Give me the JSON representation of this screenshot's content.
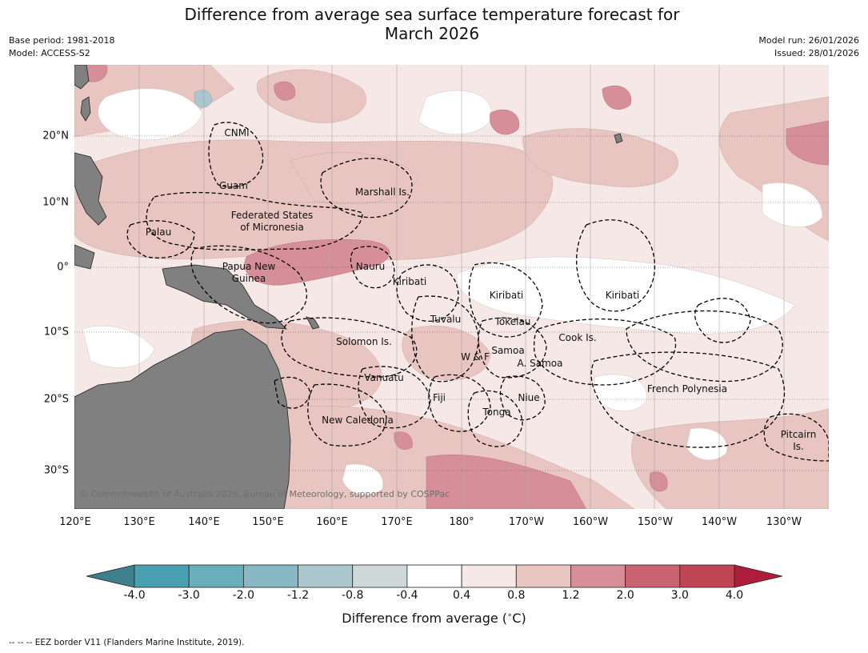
{
  "header": {
    "title_line1": "Difference from average sea surface temperature forecast for",
    "title_line2": "March 2026",
    "base_period": "Base period: 1981-2018",
    "model": "Model: ACCESS-S2",
    "model_run": "Model run: 26/01/2026",
    "issued": "Issued: 28/01/2026"
  },
  "map": {
    "copyright": "© Commonwealth of Australia 2026, Bureau of Meteorology, supported by COSPPac",
    "lon_labels": [
      "120°E",
      "130°E",
      "140°E",
      "150°E",
      "160°E",
      "170°E",
      "180°",
      "170°W",
      "160°W",
      "150°W",
      "140°W",
      "130°W"
    ],
    "lat_labels": [
      "20°N",
      "10°N",
      "0°",
      "10°S",
      "20°S",
      "30°S"
    ],
    "regions": [
      {
        "name": "CNMI"
      },
      {
        "name": "Guam"
      },
      {
        "name": "Marshall Is."
      },
      {
        "name": "Federated States\nof Micronesia"
      },
      {
        "name": "Palau"
      },
      {
        "name": "Papua New\nGuinea"
      },
      {
        "name": "Nauru"
      },
      {
        "name": "Kiribati"
      },
      {
        "name": "Kiribati"
      },
      {
        "name": "Kiribati"
      },
      {
        "name": "Tuvalu"
      },
      {
        "name": "Tokelau"
      },
      {
        "name": "Solomon Is."
      },
      {
        "name": "Cook Is."
      },
      {
        "name": "Samoa"
      },
      {
        "name": "W & F"
      },
      {
        "name": "A. Samoa"
      },
      {
        "name": "Vanuatu"
      },
      {
        "name": "Fiji"
      },
      {
        "name": "Niue"
      },
      {
        "name": "French Polynesia"
      },
      {
        "name": "Tonga"
      },
      {
        "name": "New Caledonia"
      },
      {
        "name": "Pitcairn\nIs."
      }
    ],
    "colors": {
      "land": "#808080",
      "ocean_base": "#f5e8e6",
      "band_0_8_1_2": "#e8c5c0",
      "band_1_2_2_0": "#d68f98",
      "band_2_0_3_0": "#c96470",
      "band_neutral": "#ffffff",
      "band_cool": "#a9c7cc"
    }
  },
  "colorbar": {
    "ticks": [
      "-4.0",
      "-3.0",
      "-2.0",
      "-1.2",
      "-0.8",
      "-0.4",
      "0.4",
      "0.8",
      "1.2",
      "2.0",
      "3.0",
      "4.0"
    ],
    "colors": [
      "#3e818c",
      "#49a0b1",
      "#6aaebc",
      "#88b8c3",
      "#a9c7cc",
      "#cfd8d9",
      "#ffffff",
      "#f5e8e6",
      "#e8c5c0",
      "#d68f98",
      "#c96470",
      "#bf4555",
      "#ae1d3b"
    ],
    "label": "Difference from average ($^\\circ$C)"
  },
  "footnote": "-- -- -- EEZ border V11 (Flanders Marine Institute, 2019)."
}
